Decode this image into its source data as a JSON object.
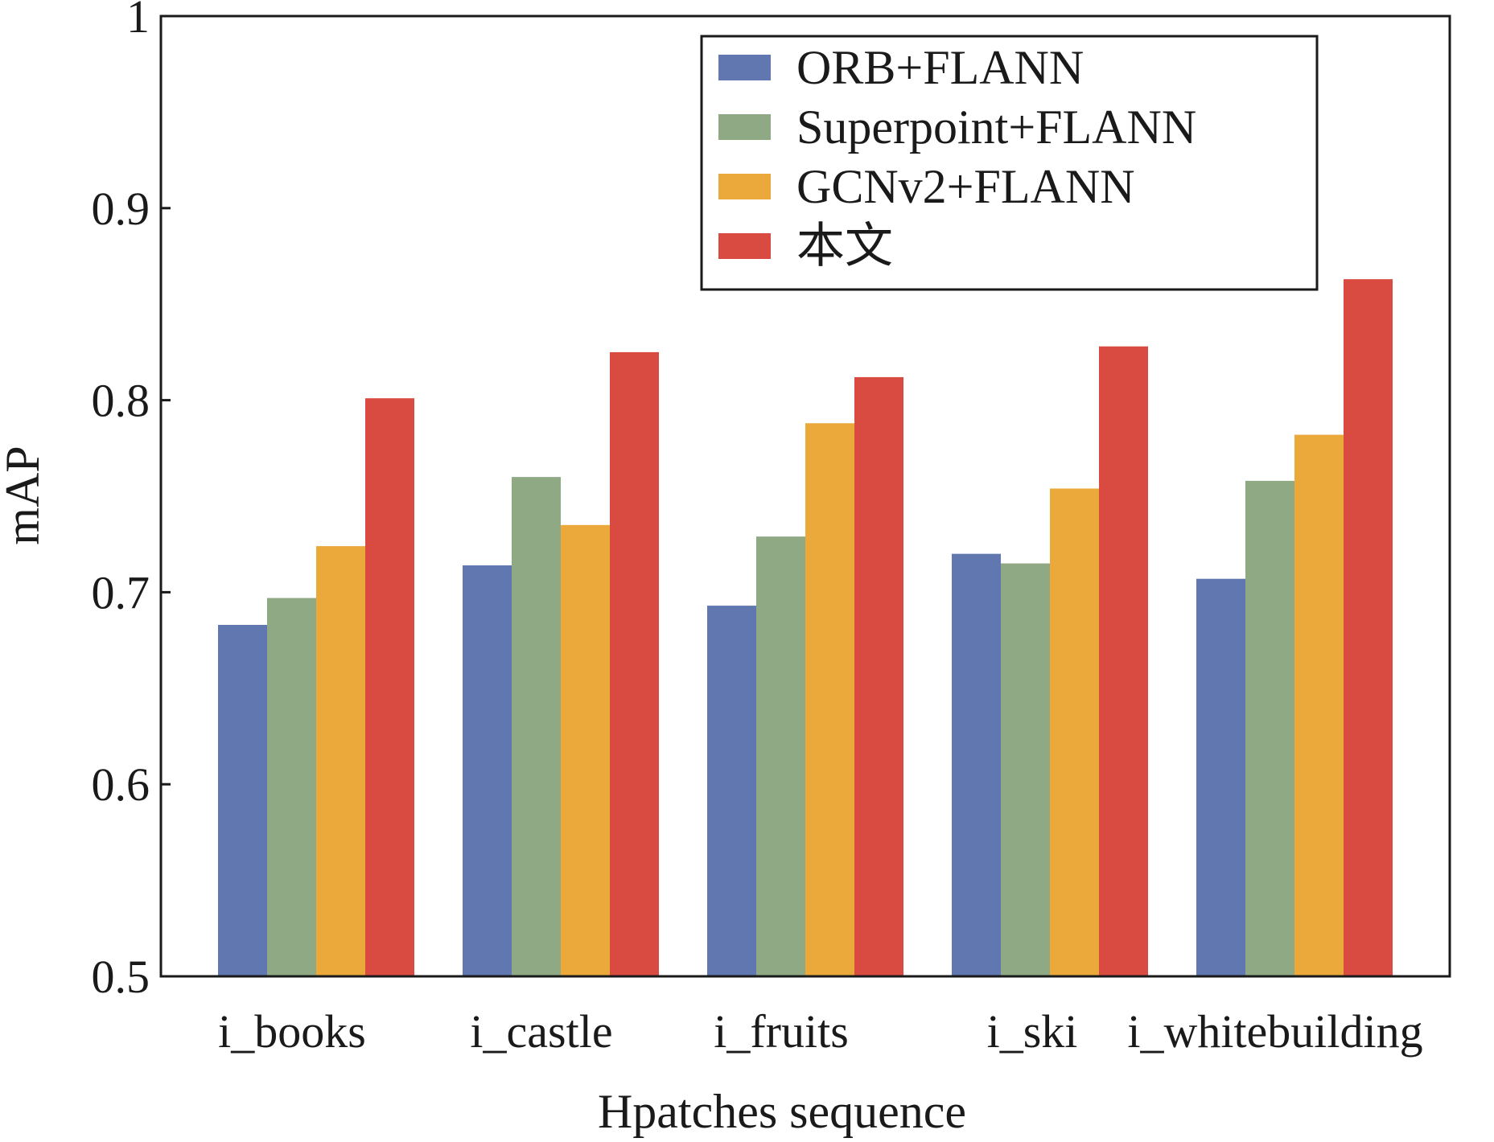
{
  "chart_data": {
    "type": "bar",
    "xlabel": "Hpatches sequence",
    "ylabel": "mAP",
    "ylim": [
      0.5,
      1.0
    ],
    "yticks": [
      {
        "value": 0.5,
        "label": "0.5"
      },
      {
        "value": 0.6,
        "label": "0.6"
      },
      {
        "value": 0.7,
        "label": "0.7"
      },
      {
        "value": 0.8,
        "label": "0.8"
      },
      {
        "value": 0.9,
        "label": "0.9"
      },
      {
        "value": 1.0,
        "label": "1"
      }
    ],
    "categories": [
      "i_books",
      "i_castle",
      "i_fruits",
      "i_ski",
      "i_whitebuilding"
    ],
    "series": [
      {
        "name": "ORB+FLANN",
        "color": "#6077b0",
        "values": [
          0.683,
          0.714,
          0.693,
          0.72,
          0.707
        ]
      },
      {
        "name": "Superpoint+FLANN",
        "color": "#8ea984",
        "values": [
          0.697,
          0.76,
          0.729,
          0.715,
          0.758
        ]
      },
      {
        "name": "GCNv2+FLANN",
        "color": "#eba93c",
        "values": [
          0.724,
          0.735,
          0.788,
          0.754,
          0.782
        ]
      },
      {
        "name": "本文",
        "color": "#d94a40",
        "values": [
          0.801,
          0.825,
          0.812,
          0.828,
          0.863
        ]
      }
    ],
    "legend_position": "top-right",
    "grid": false
  }
}
